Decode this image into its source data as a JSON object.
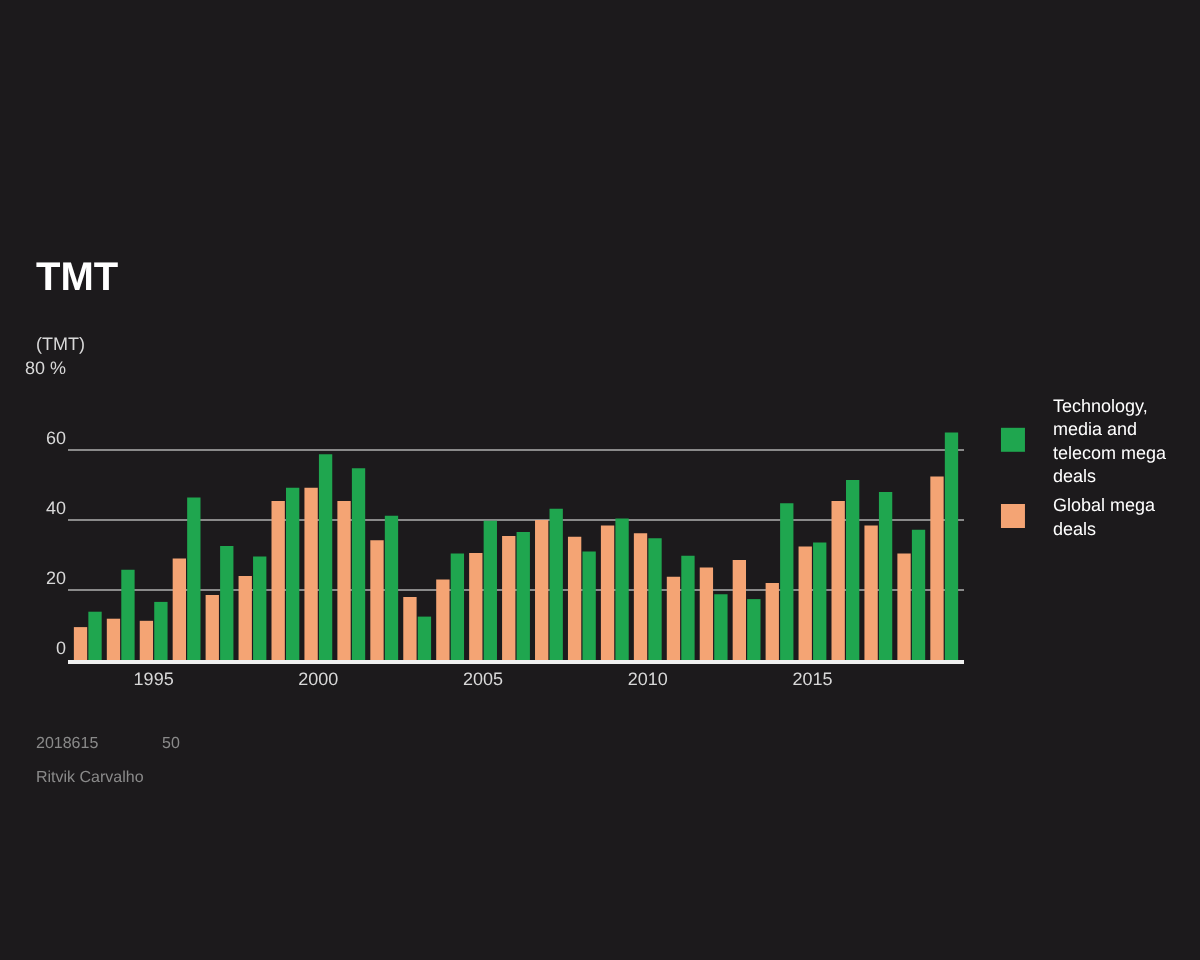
{
  "chart_data": {
    "type": "bar",
    "title": "TMT",
    "ylabel": "(TMT)",
    "x": [
      1993,
      1994,
      1995,
      1996,
      1997,
      1998,
      1999,
      2000,
      2001,
      2002,
      2003,
      2004,
      2005,
      2006,
      2007,
      2008,
      2009,
      2010,
      2011,
      2012,
      2013,
      2014,
      2015,
      2016,
      2017,
      2018,
      2019
    ],
    "series": [
      {
        "name": "Technology, media and telecom mega deals",
        "color": "#1fa64f",
        "values": [
          13.8,
          25.8,
          16.6,
          46.4,
          32.6,
          29.6,
          49.2,
          58.8,
          54.8,
          41.2,
          12.4,
          30.4,
          39.8,
          36.6,
          43.2,
          31,
          40.4,
          34.8,
          29.8,
          18.8,
          17.4,
          44.8,
          33.6,
          51.4,
          48,
          37.2,
          65
        ]
      },
      {
        "name": "Global mega deals",
        "color": "#f4a474",
        "values": [
          9.4,
          11.8,
          11.2,
          29,
          18.6,
          24,
          45.4,
          49.2,
          45.4,
          34.2,
          18,
          23,
          30.6,
          35.4,
          40,
          35.2,
          38.4,
          36.2,
          23.8,
          26.4,
          28.6,
          22,
          32.4,
          45.4,
          38.4,
          30.4,
          52.4
        ]
      }
    ],
    "xlim": [
      1992.4,
      2019.6
    ],
    "xticks": [
      1995,
      2000,
      2005,
      2010,
      2015
    ],
    "ylim": [
      0,
      80
    ],
    "yticks": [
      0,
      20,
      40,
      60,
      {
        "value": 80,
        "label": "80 %"
      }
    ],
    "grid": "y",
    "legend": "top right",
    "annotations": [
      "2018615",
      "50",
      "Ritvik Carvalho"
    ]
  }
}
